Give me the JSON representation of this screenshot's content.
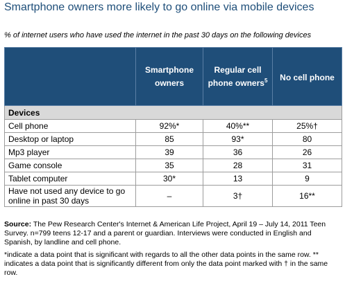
{
  "title": "Smartphone owners more likely to go online via mobile devices",
  "subtitle": "% of internet users who have used the internet in the past 30 days on the following devices",
  "chart_data": {
    "type": "table",
    "columns": [
      "Smartphone owners",
      "Regular cell phone owners",
      "No cell phone"
    ],
    "column_superscripts": [
      "",
      "5",
      ""
    ],
    "section": "Devices",
    "rows": [
      {
        "label": "Cell phone",
        "values": [
          "92%*",
          "40%**",
          "25%†"
        ]
      },
      {
        "label": "Desktop or laptop",
        "values": [
          "85",
          "93*",
          "80"
        ]
      },
      {
        "label": "Mp3 player",
        "values": [
          "39",
          "36",
          "26"
        ]
      },
      {
        "label": "Game console",
        "values": [
          "35",
          "28",
          "31"
        ]
      },
      {
        "label": "Tablet computer",
        "values": [
          "30*",
          "13",
          "9"
        ]
      },
      {
        "label": "Have not used any device to go online in past 30 days",
        "values": [
          "–",
          "3†",
          "16**"
        ]
      }
    ]
  },
  "source": {
    "label": "Source:",
    "text": "The Pew Research Center's Internet & American Life Project, April 19 – July 14, 2011 Teen Survey. n=799 teens 12-17 and a parent or guardian. Interviews were conducted in English and Spanish, by landline and cell phone."
  },
  "footnote": "*indicate a data point that is significant with regards to all the other data points in the same row. ** indicates a data point that is significantly different from only the data point marked with † in the same row."
}
